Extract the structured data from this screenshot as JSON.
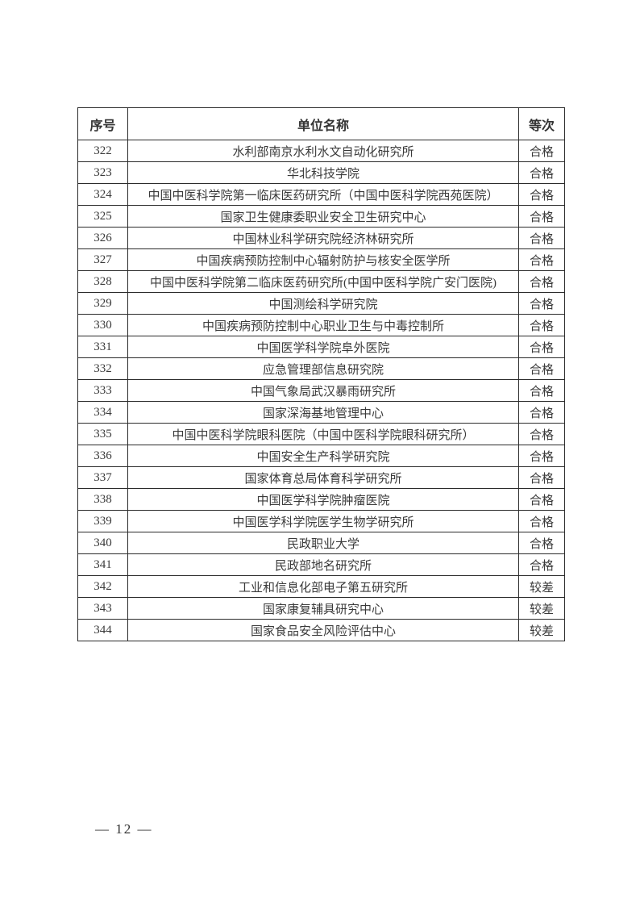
{
  "page": {
    "footer_page_number": "— 12 —"
  },
  "colors": {
    "page_background": "#ffffff",
    "text": "#3a3a3a",
    "border": "#2b2b2b"
  },
  "table": {
    "columns": [
      {
        "key": "no",
        "label": "序号"
      },
      {
        "key": "name",
        "label": "单位名称"
      },
      {
        "key": "grade",
        "label": "等次"
      }
    ],
    "rows": [
      {
        "no": "322",
        "name": "水利部南京水利水文自动化研究所",
        "grade": "合格"
      },
      {
        "no": "323",
        "name": "华北科技学院",
        "grade": "合格"
      },
      {
        "no": "324",
        "name": "中国中医科学院第一临床医药研究所（中国中医科学院西苑医院）",
        "grade": "合格"
      },
      {
        "no": "325",
        "name": "国家卫生健康委职业安全卫生研究中心",
        "grade": "合格"
      },
      {
        "no": "326",
        "name": "中国林业科学研究院经济林研究所",
        "grade": "合格"
      },
      {
        "no": "327",
        "name": "中国疾病预防控制中心辐射防护与核安全医学所",
        "grade": "合格"
      },
      {
        "no": "328",
        "name": "中国中医科学院第二临床医药研究所(中国中医科学院广安门医院)",
        "grade": "合格"
      },
      {
        "no": "329",
        "name": "中国测绘科学研究院",
        "grade": "合格"
      },
      {
        "no": "330",
        "name": "中国疾病预防控制中心职业卫生与中毒控制所",
        "grade": "合格"
      },
      {
        "no": "331",
        "name": "中国医学科学院阜外医院",
        "grade": "合格"
      },
      {
        "no": "332",
        "name": "应急管理部信息研究院",
        "grade": "合格"
      },
      {
        "no": "333",
        "name": "中国气象局武汉暴雨研究所",
        "grade": "合格"
      },
      {
        "no": "334",
        "name": "国家深海基地管理中心",
        "grade": "合格"
      },
      {
        "no": "335",
        "name": "中国中医科学院眼科医院（中国中医科学院眼科研究所）",
        "grade": "合格"
      },
      {
        "no": "336",
        "name": "中国安全生产科学研究院",
        "grade": "合格"
      },
      {
        "no": "337",
        "name": "国家体育总局体育科学研究所",
        "grade": "合格"
      },
      {
        "no": "338",
        "name": "中国医学科学院肿瘤医院",
        "grade": "合格"
      },
      {
        "no": "339",
        "name": "中国医学科学院医学生物学研究所",
        "grade": "合格"
      },
      {
        "no": "340",
        "name": "民政职业大学",
        "grade": "合格"
      },
      {
        "no": "341",
        "name": "民政部地名研究所",
        "grade": "合格"
      },
      {
        "no": "342",
        "name": "工业和信息化部电子第五研究所",
        "grade": "较差"
      },
      {
        "no": "343",
        "name": "国家康复辅具研究中心",
        "grade": "较差"
      },
      {
        "no": "344",
        "name": "国家食品安全风险评估中心",
        "grade": "较差"
      }
    ]
  }
}
